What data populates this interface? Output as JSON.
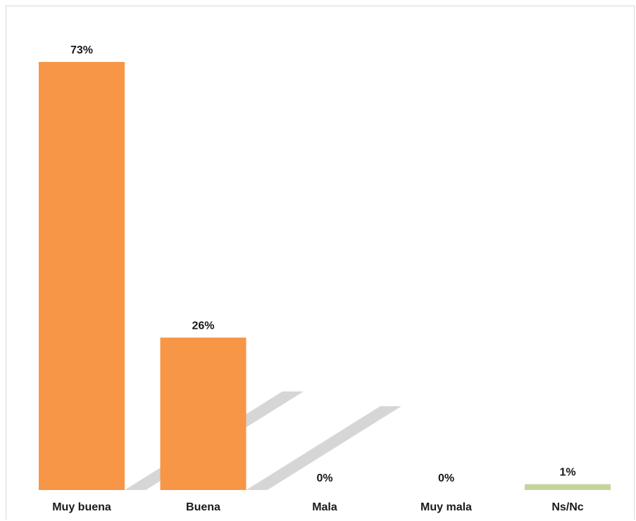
{
  "chart_data": {
    "type": "bar",
    "title": "",
    "xlabel": "",
    "ylabel": "",
    "categories": [
      "Muy buena",
      "Buena",
      "Mala",
      "Muy mala",
      "Ns/Nc"
    ],
    "values": [
      73,
      26,
      0,
      0,
      1
    ],
    "value_labels": [
      "73%",
      "26%",
      "0%",
      "0%",
      "1%"
    ],
    "ylim": [
      0,
      80
    ],
    "grid": false,
    "legend": "none",
    "colors": [
      "#f79646",
      "#f79646",
      "#f79646",
      "#f79646",
      "#c3d69b"
    ],
    "shadow_color": "#c8c8c8"
  }
}
